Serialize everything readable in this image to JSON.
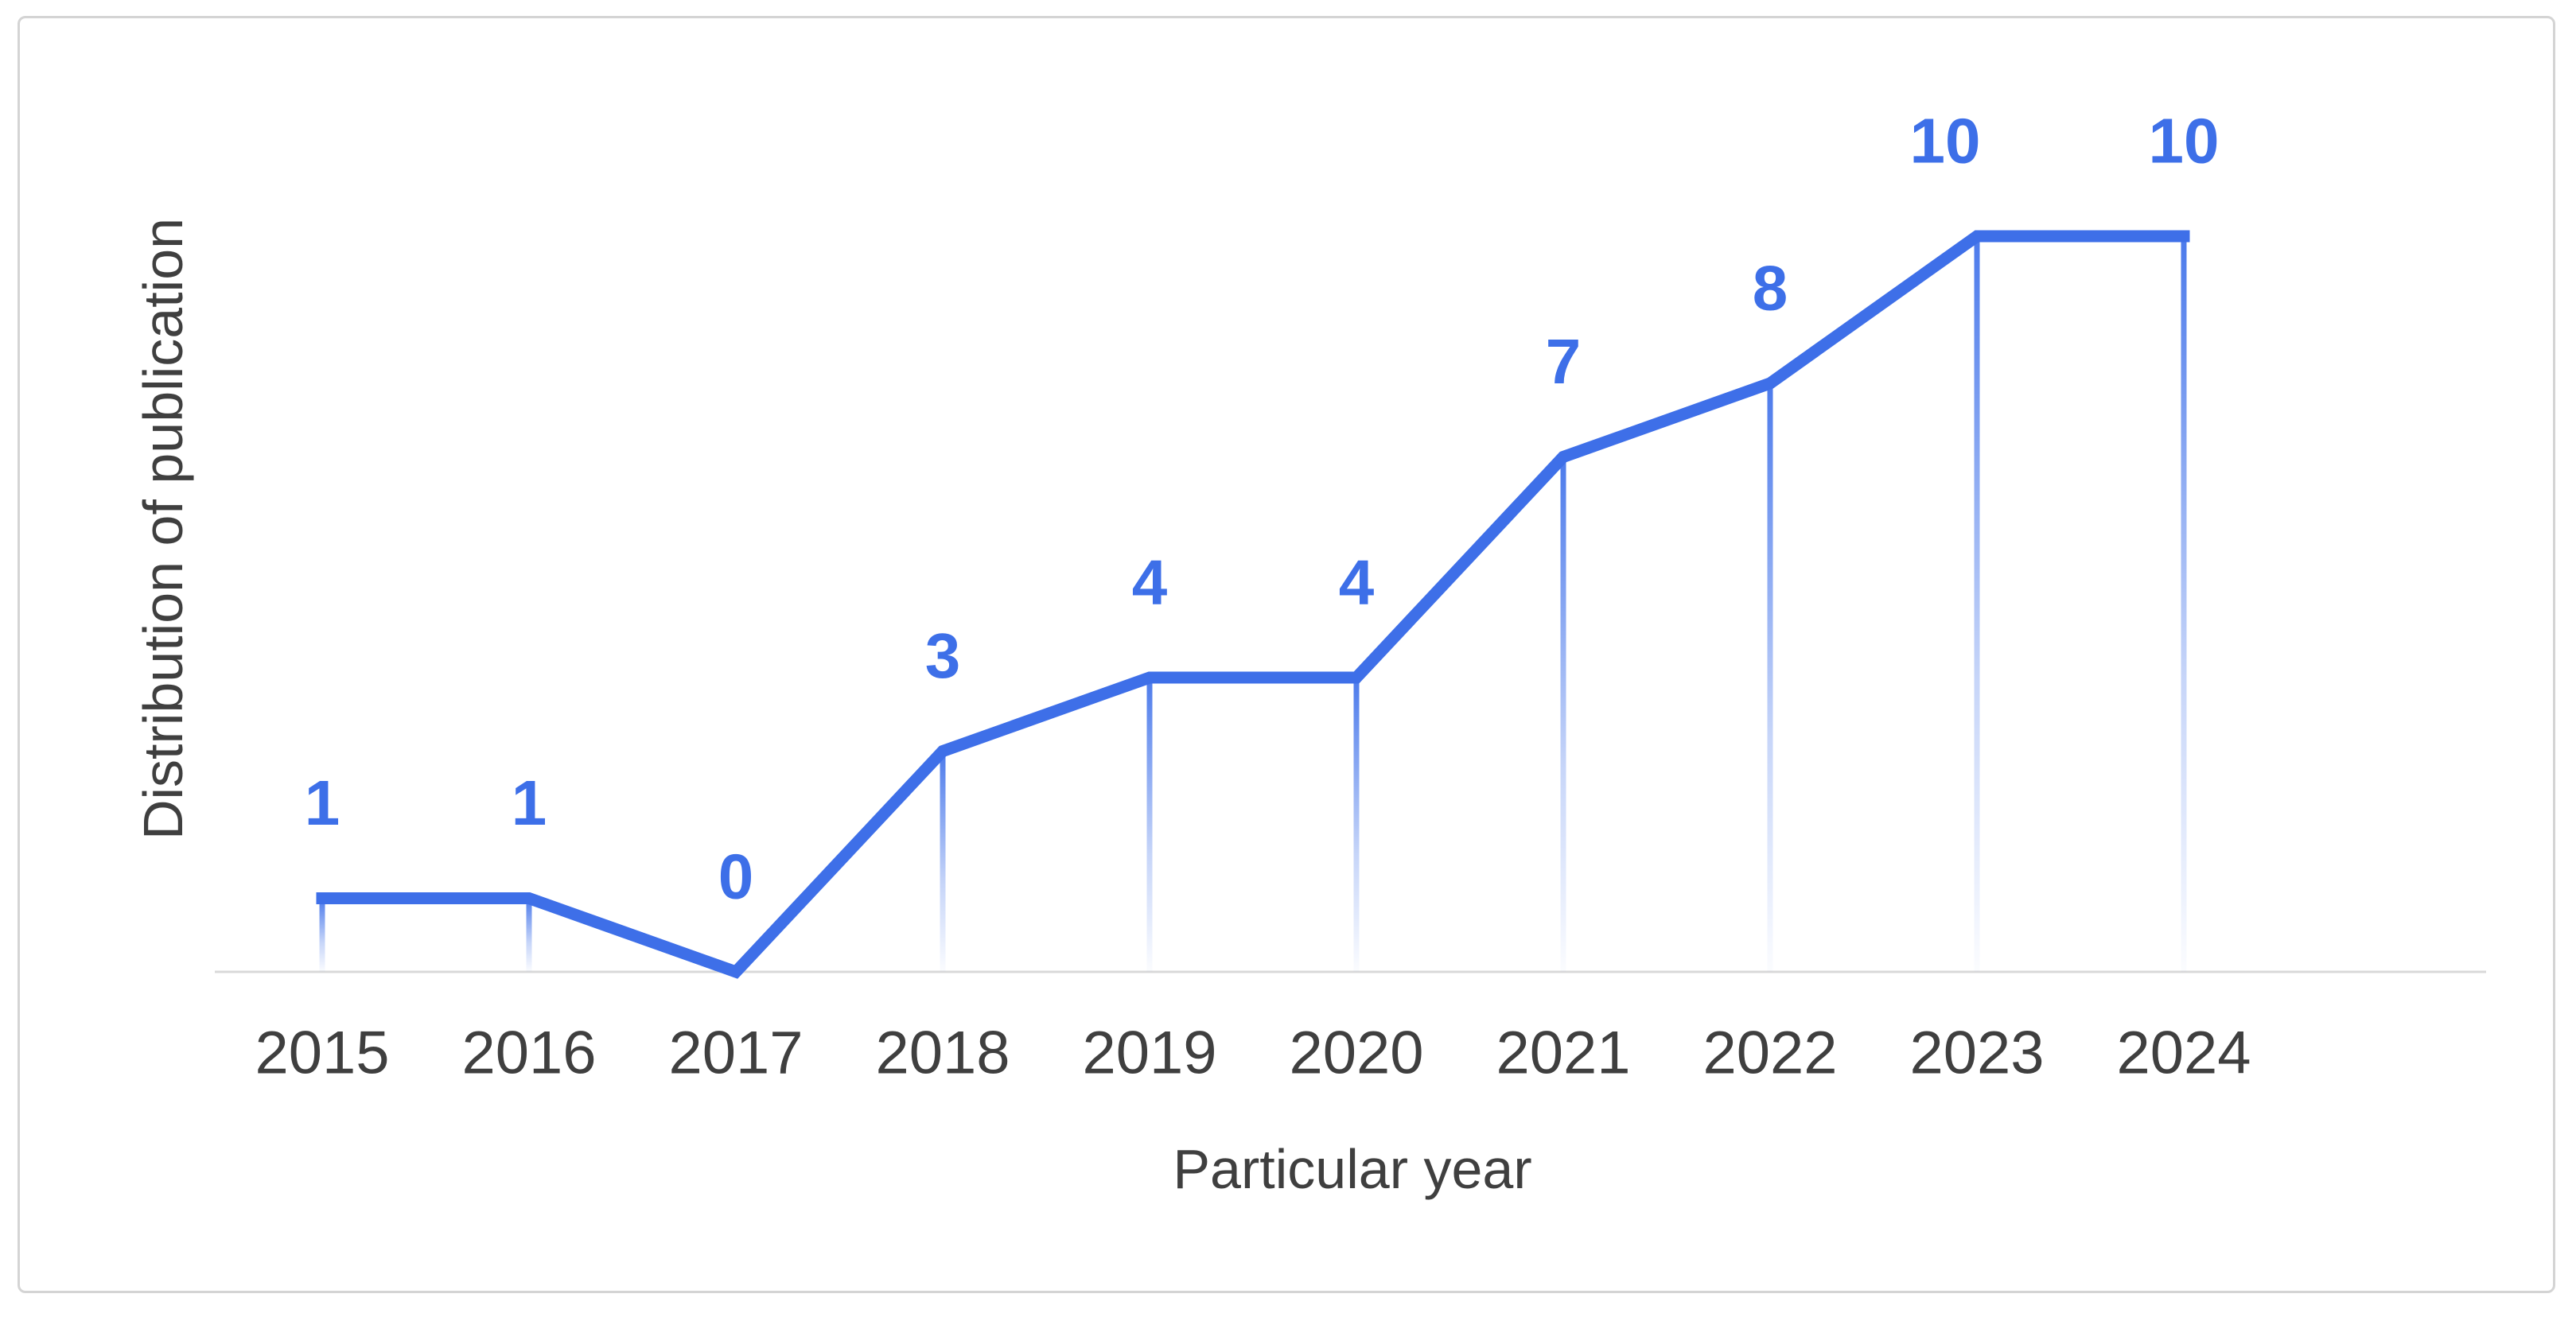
{
  "chart_data": {
    "type": "line",
    "categories": [
      "2015",
      "2016",
      "2017",
      "2018",
      "2019",
      "2020",
      "2021",
      "2022",
      "2023",
      "2024"
    ],
    "values": [
      1,
      1,
      0,
      3,
      4,
      4,
      7,
      8,
      10,
      10
    ],
    "data_labels": [
      "1",
      "1",
      "0",
      "3",
      "4",
      "4",
      "7",
      "8",
      "10",
      "10"
    ],
    "title": "",
    "xlabel": "Particular year",
    "ylabel": "Distribution of publication",
    "ylim": [
      0,
      10
    ],
    "grid": false,
    "legend": "none",
    "series_name": "Distribution of publication",
    "marker": "none",
    "drop_lines": true
  },
  "colors": {
    "line": "#3e6fe8",
    "data_label": "#3d6fe8",
    "drop_line": "#4273ea",
    "axis_line": "#d9d9d9",
    "text": "#3f3f3f",
    "frame_border": "#d4d4d4",
    "background": "#ffffff"
  }
}
